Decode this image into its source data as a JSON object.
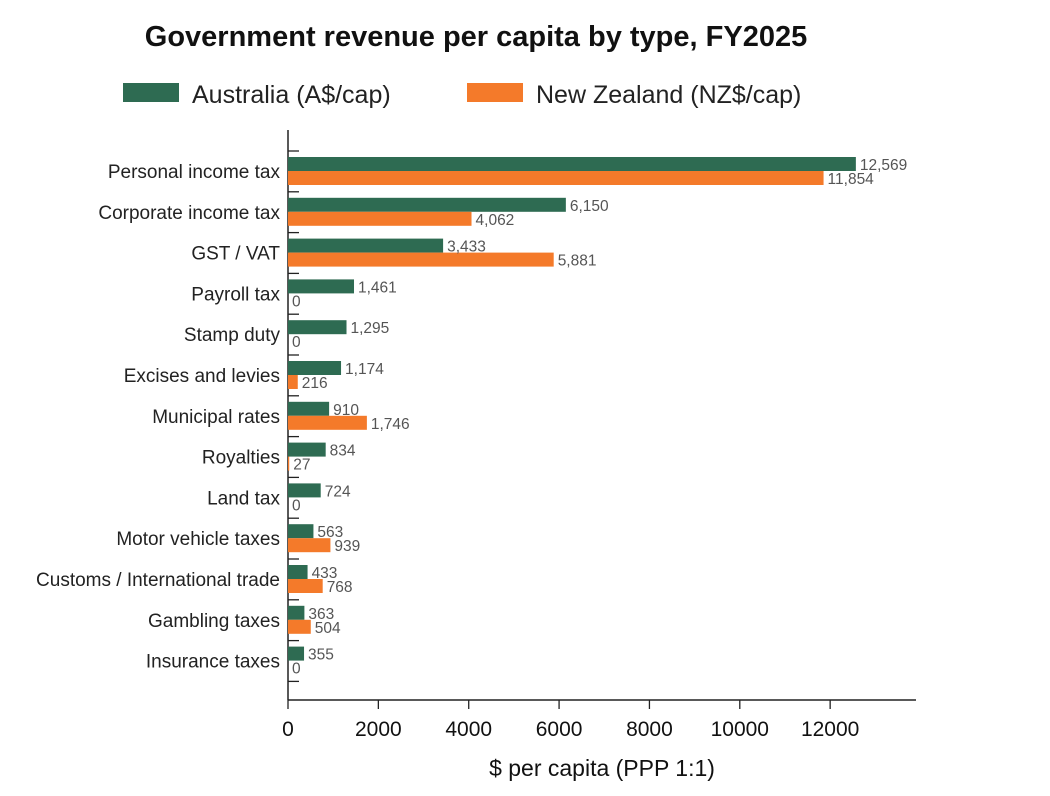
{
  "chart_data": {
    "type": "bar",
    "orientation": "horizontal",
    "title": "Government revenue per capita by type, FY2025",
    "xlabel": "$ per capita (PPP 1:1)",
    "ylabel": "",
    "xlim": [
      0,
      13900
    ],
    "xticks": [
      "0",
      "2000",
      "4000",
      "6000",
      "8000",
      "10000",
      "12000"
    ],
    "grid": false,
    "legend_position": "top",
    "categories": [
      "Personal income tax",
      "Corporate income tax",
      "GST / VAT",
      "Payroll tax",
      "Stamp duty",
      "Excises and levies",
      "Municipal rates",
      "Royalties",
      "Land tax",
      "Motor vehicle taxes",
      "Customs / International trade",
      "Gambling taxes",
      "Insurance taxes"
    ],
    "series": [
      {
        "name": "Australia (A$/cap)",
        "color": "#2e6b52",
        "values": [
          12569,
          6150,
          3433,
          1461,
          1295,
          1174,
          910,
          834,
          724,
          563,
          433,
          363,
          355
        ],
        "labels": [
          "12,569",
          "6,150",
          "3,433",
          "1,461",
          "1,295",
          "1,174",
          "910",
          "834",
          "724",
          "563",
          "433",
          "363",
          "355"
        ]
      },
      {
        "name": "New Zealand (NZ$/cap)",
        "color": "#f47a2a",
        "values": [
          11854,
          4062,
          5881,
          0,
          0,
          216,
          1746,
          27,
          0,
          939,
          768,
          504,
          0
        ],
        "labels": [
          "11,854",
          "4,062",
          "5,881",
          "0",
          "0",
          "216",
          "1,746",
          "27",
          "0",
          "939",
          "768",
          "504",
          "0"
        ]
      }
    ]
  }
}
